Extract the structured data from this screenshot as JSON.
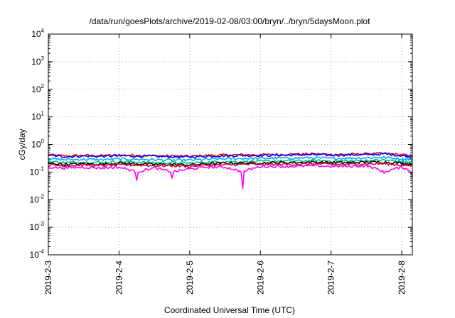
{
  "chart_data": {
    "type": "line",
    "title": "/data/run/goesPlots/archive/2019-02-08/03:00/bryn/../bryn/5daysMoon.plot",
    "xlabel": "Coordinated Universal Time (UTC)",
    "ylabel": "cGy/day",
    "yscale": "log",
    "ylim": [
      0.0001,
      10000
    ],
    "xlim": [
      0,
      5.15
    ],
    "grid": true,
    "legend": "none",
    "ytick_labels": [
      {
        "base": "10",
        "exp": "-4"
      },
      {
        "base": "10",
        "exp": "-3"
      },
      {
        "base": "10",
        "exp": "-2"
      },
      {
        "base": "10",
        "exp": "-1"
      },
      {
        "base": "10",
        "exp": "0"
      },
      {
        "base": "10",
        "exp": "1"
      },
      {
        "base": "10",
        "exp": "2"
      },
      {
        "base": "10",
        "exp": "3"
      },
      {
        "base": "10",
        "exp": "4"
      }
    ],
    "xtick_labels": [
      "2019-2-3",
      "2019-2-4",
      "2019-2-5",
      "2019-2-6",
      "2019-2-7",
      "2019-2-8"
    ],
    "x_days": [
      0,
      0.25,
      0.5,
      0.75,
      1,
      1.25,
      1.5,
      1.75,
      2,
      2.25,
      2.5,
      2.75,
      3,
      3.25,
      3.5,
      3.75,
      4,
      4.25,
      4.5,
      4.75,
      5,
      5.15
    ],
    "series": [
      {
        "color": "#ff0000",
        "values": [
          0.42,
          0.38,
          0.4,
          0.39,
          0.41,
          0.4,
          0.39,
          0.38,
          0.37,
          0.4,
          0.41,
          0.42,
          0.42,
          0.43,
          0.44,
          0.45,
          0.43,
          0.44,
          0.45,
          0.47,
          0.42,
          0.38
        ]
      },
      {
        "color": "#0000ff",
        "values": [
          0.4,
          0.36,
          0.38,
          0.37,
          0.39,
          0.38,
          0.37,
          0.36,
          0.35,
          0.38,
          0.39,
          0.4,
          0.4,
          0.41,
          0.42,
          0.43,
          0.41,
          0.42,
          0.43,
          0.45,
          0.4,
          0.36
        ]
      },
      {
        "color": "#00aaff",
        "values": [
          0.3,
          0.28,
          0.29,
          0.28,
          0.3,
          0.29,
          0.28,
          0.27,
          0.27,
          0.29,
          0.3,
          0.31,
          0.31,
          0.32,
          0.32,
          0.33,
          0.31,
          0.32,
          0.33,
          0.34,
          0.3,
          0.28
        ]
      },
      {
        "color": "#00c080",
        "values": [
          0.24,
          0.22,
          0.23,
          0.22,
          0.24,
          0.23,
          0.22,
          0.22,
          0.21,
          0.23,
          0.24,
          0.24,
          0.24,
          0.25,
          0.25,
          0.26,
          0.25,
          0.25,
          0.26,
          0.27,
          0.24,
          0.22
        ]
      },
      {
        "color": "#000000",
        "values": [
          0.21,
          0.19,
          0.2,
          0.19,
          0.21,
          0.2,
          0.19,
          0.19,
          0.18,
          0.2,
          0.21,
          0.21,
          0.21,
          0.22,
          0.22,
          0.23,
          0.22,
          0.22,
          0.23,
          0.23,
          0.21,
          0.19
        ]
      },
      {
        "color": "#cc0033",
        "values": [
          0.18,
          0.17,
          0.18,
          0.17,
          0.18,
          0.18,
          0.17,
          0.17,
          0.16,
          0.18,
          0.18,
          0.19,
          0.19,
          0.19,
          0.19,
          0.2,
          0.19,
          0.19,
          0.2,
          0.2,
          0.18,
          0.17
        ]
      },
      {
        "color": "#ff00ff",
        "values": [
          0.15,
          0.14,
          0.15,
          0.14,
          0.15,
          0.05,
          0.14,
          0.06,
          0.13,
          0.15,
          0.15,
          0.025,
          0.16,
          0.16,
          0.16,
          0.17,
          0.16,
          0.16,
          0.17,
          0.09,
          0.15,
          0.07
        ]
      }
    ]
  }
}
